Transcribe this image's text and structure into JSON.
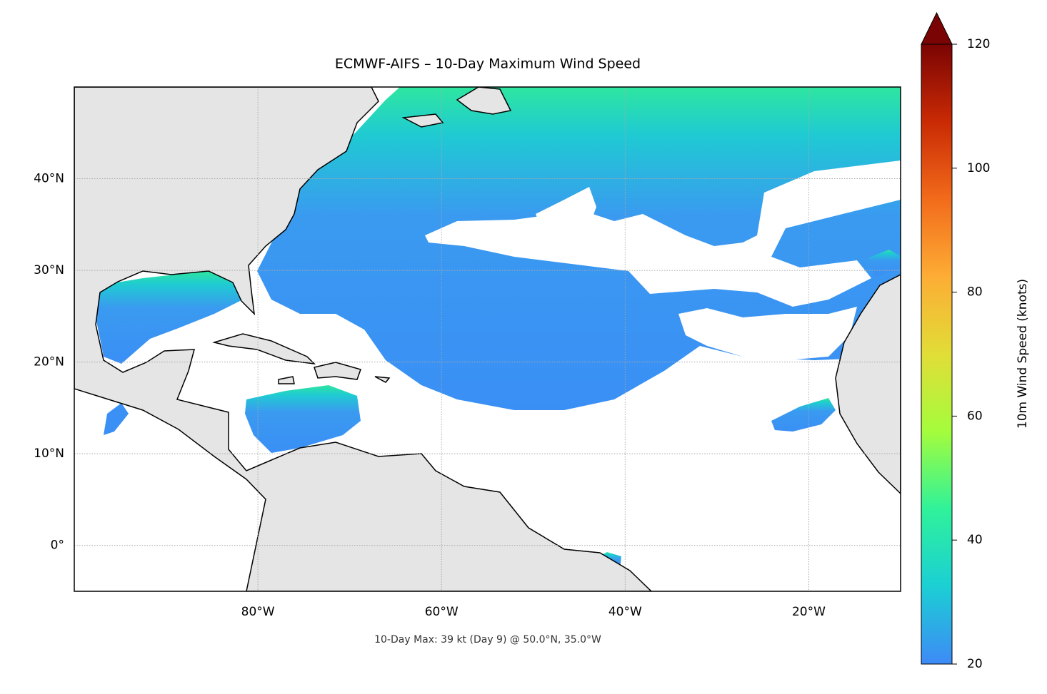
{
  "chart_data": {
    "type": "map",
    "title": "ECMWF-AIFS – 10-Day Maximum Wind Speed",
    "annotation": "10-Day Max: 39 kt (Day 9) @ 50.0°N, 35.0°W",
    "xlim": [
      -100,
      -10
    ],
    "ylim": [
      -5,
      50
    ],
    "xticks": [
      {
        "value": -80,
        "label": "80°W"
      },
      {
        "value": -60,
        "label": "60°W"
      },
      {
        "value": -40,
        "label": "40°W"
      },
      {
        "value": -20,
        "label": "20°W"
      }
    ],
    "yticks": [
      {
        "value": 0,
        "label": "0°"
      },
      {
        "value": 10,
        "label": "10°N"
      },
      {
        "value": 20,
        "label": "20°N"
      },
      {
        "value": 30,
        "label": "30°N"
      },
      {
        "value": 40,
        "label": "40°N"
      }
    ],
    "grid": true,
    "colorbar": {
      "label": "10m Wind Speed (knots)",
      "lim": [
        20,
        120
      ],
      "ticks": [
        20,
        40,
        60,
        80,
        100,
        120
      ],
      "colormap": [
        "#3e8af7",
        "#1bcfd4",
        "#2ff29a",
        "#a4fc3c",
        "#e1dd37",
        "#fdad35",
        "#f26b1b",
        "#c92a04",
        "#7a0403"
      ]
    }
  }
}
